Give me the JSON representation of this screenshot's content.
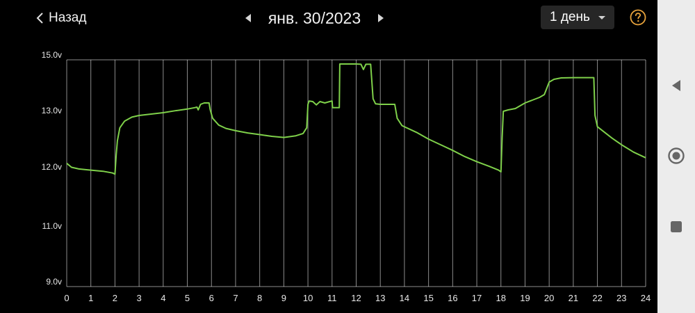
{
  "header": {
    "back_label": "Назад",
    "date": "янв. 30/2023",
    "range": "1 день"
  },
  "colors": {
    "accent": "#e8a33c",
    "line": "#7fd14a",
    "grid": "#ffffff",
    "background": "#000000"
  },
  "icons": {
    "back": "chevron-left-icon",
    "prev": "triangle-left-icon",
    "next": "triangle-right-icon",
    "dropdown": "caret-down-icon",
    "help": "help-circle-icon",
    "nav_back": "nav-back-icon",
    "nav_home": "nav-home-icon",
    "nav_recents": "nav-recents-icon"
  },
  "chart_data": {
    "type": "line",
    "title": "",
    "xlabel": "",
    "ylabel": "",
    "xlim": [
      0,
      24
    ],
    "x_ticks": [
      "0",
      "1",
      "2",
      "3",
      "4",
      "5",
      "6",
      "7",
      "8",
      "9",
      "10",
      "11",
      "12",
      "13",
      "14",
      "15",
      "16",
      "17",
      "18",
      "19",
      "20",
      "21",
      "22",
      "23",
      "24"
    ],
    "y_ticks": [
      {
        "value": 9.0,
        "label": "9.0v"
      },
      {
        "value": 11.0,
        "label": "11.0v"
      },
      {
        "value": 12.0,
        "label": "12.0v"
      },
      {
        "value": 13.0,
        "label": "13.0v"
      },
      {
        "value": 15.0,
        "label": "15.0v"
      }
    ],
    "grid": true,
    "series": [
      {
        "points": [
          [
            0.0,
            12.15
          ],
          [
            0.2,
            12.08
          ],
          [
            0.5,
            12.05
          ],
          [
            1.0,
            12.03
          ],
          [
            1.5,
            12.01
          ],
          [
            1.9,
            11.98
          ],
          [
            2.0,
            11.96
          ],
          [
            2.05,
            12.3
          ],
          [
            2.1,
            12.55
          ],
          [
            2.2,
            12.78
          ],
          [
            2.4,
            12.9
          ],
          [
            2.7,
            12.97
          ],
          [
            3.0,
            13.0
          ],
          [
            3.5,
            13.05
          ],
          [
            4.0,
            13.1
          ],
          [
            4.5,
            13.17
          ],
          [
            5.0,
            13.23
          ],
          [
            5.3,
            13.28
          ],
          [
            5.4,
            13.3
          ],
          [
            5.45,
            13.2
          ],
          [
            5.55,
            13.4
          ],
          [
            5.7,
            13.45
          ],
          [
            5.9,
            13.45
          ],
          [
            5.95,
            13.2
          ],
          [
            6.05,
            12.95
          ],
          [
            6.3,
            12.83
          ],
          [
            6.6,
            12.77
          ],
          [
            7.0,
            12.73
          ],
          [
            7.5,
            12.69
          ],
          [
            8.0,
            12.66
          ],
          [
            8.5,
            12.63
          ],
          [
            9.0,
            12.61
          ],
          [
            9.5,
            12.64
          ],
          [
            9.8,
            12.68
          ],
          [
            9.9,
            12.75
          ],
          [
            9.95,
            12.78
          ],
          [
            10.0,
            13.4
          ],
          [
            10.05,
            13.52
          ],
          [
            10.2,
            13.5
          ],
          [
            10.35,
            13.38
          ],
          [
            10.5,
            13.5
          ],
          [
            10.7,
            13.45
          ],
          [
            10.9,
            13.5
          ],
          [
            11.0,
            13.52
          ],
          [
            11.02,
            13.28
          ],
          [
            11.3,
            13.28
          ],
          [
            11.32,
            14.85
          ],
          [
            11.6,
            14.85
          ],
          [
            12.0,
            14.85
          ],
          [
            12.2,
            14.84
          ],
          [
            12.3,
            14.65
          ],
          [
            12.4,
            14.84
          ],
          [
            12.6,
            14.84
          ],
          [
            12.7,
            13.6
          ],
          [
            12.8,
            13.42
          ],
          [
            13.0,
            13.4
          ],
          [
            13.3,
            13.4
          ],
          [
            13.6,
            13.4
          ],
          [
            13.7,
            12.95
          ],
          [
            13.9,
            12.82
          ],
          [
            14.5,
            12.7
          ],
          [
            15.0,
            12.58
          ],
          [
            15.5,
            12.48
          ],
          [
            16.0,
            12.38
          ],
          [
            16.5,
            12.27
          ],
          [
            17.0,
            12.18
          ],
          [
            17.5,
            12.1
          ],
          [
            17.9,
            12.03
          ],
          [
            18.0,
            12.0
          ],
          [
            18.05,
            12.6
          ],
          [
            18.1,
            13.15
          ],
          [
            18.3,
            13.2
          ],
          [
            18.6,
            13.25
          ],
          [
            18.8,
            13.35
          ],
          [
            19.0,
            13.45
          ],
          [
            19.3,
            13.55
          ],
          [
            19.6,
            13.65
          ],
          [
            19.8,
            13.75
          ],
          [
            20.0,
            14.2
          ],
          [
            20.2,
            14.3
          ],
          [
            20.5,
            14.35
          ],
          [
            21.0,
            14.36
          ],
          [
            21.5,
            14.36
          ],
          [
            21.85,
            14.36
          ],
          [
            21.9,
            13.0
          ],
          [
            22.0,
            12.8
          ],
          [
            22.3,
            12.7
          ],
          [
            22.6,
            12.6
          ],
          [
            23.0,
            12.48
          ],
          [
            23.5,
            12.35
          ],
          [
            24.0,
            12.25
          ]
        ]
      }
    ]
  }
}
